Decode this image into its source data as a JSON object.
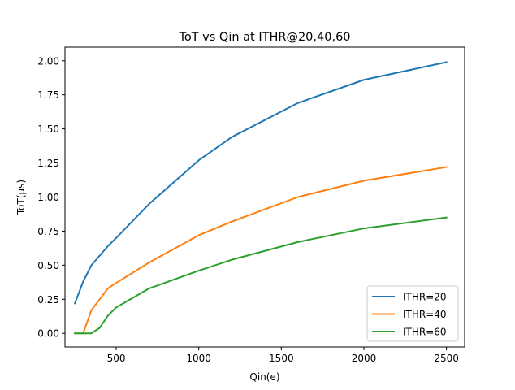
{
  "chart_data": {
    "type": "line",
    "title": "ToT vs Qin at ITHR@20,40,60",
    "xlabel": "Qin(e)",
    "ylabel": "ToT(μs)",
    "xlim": [
      190,
      2610
    ],
    "ylim": [
      -0.1,
      2.1
    ],
    "xticks": [
      500,
      1000,
      1500,
      2000,
      2500
    ],
    "xtick_labels": [
      "500",
      "1000",
      "1500",
      "2000",
      "2500"
    ],
    "yticks": [
      0.0,
      0.25,
      0.5,
      0.75,
      1.0,
      1.25,
      1.5,
      1.75,
      2.0
    ],
    "ytick_labels": [
      "0.00",
      "0.25",
      "0.50",
      "0.75",
      "1.00",
      "1.25",
      "1.50",
      "1.75",
      "2.00"
    ],
    "grid": false,
    "legend_position": "lower-right",
    "series": [
      {
        "name": "ITHR=20",
        "color": "#1f77b4",
        "x": [
          250,
          300,
          350,
          400,
          450,
          500,
          700,
          1000,
          1200,
          1600,
          2000,
          2500
        ],
        "y": [
          0.22,
          0.38,
          0.5,
          0.57,
          0.64,
          0.7,
          0.95,
          1.27,
          1.44,
          1.69,
          1.86,
          1.99
        ]
      },
      {
        "name": "ITHR=40",
        "color": "#ff7f0e",
        "x": [
          250,
          300,
          350,
          400,
          450,
          500,
          700,
          1000,
          1200,
          1600,
          2000,
          2500
        ],
        "y": [
          0.0,
          0.0,
          0.17,
          0.25,
          0.33,
          0.37,
          0.52,
          0.72,
          0.82,
          1.0,
          1.12,
          1.22
        ]
      },
      {
        "name": "ITHR=60",
        "color": "#2ca02c",
        "x": [
          250,
          300,
          350,
          400,
          450,
          500,
          700,
          1000,
          1200,
          1600,
          2000,
          2500
        ],
        "y": [
          0.0,
          0.0,
          0.0,
          0.04,
          0.13,
          0.19,
          0.33,
          0.46,
          0.54,
          0.67,
          0.77,
          0.85
        ]
      }
    ]
  }
}
